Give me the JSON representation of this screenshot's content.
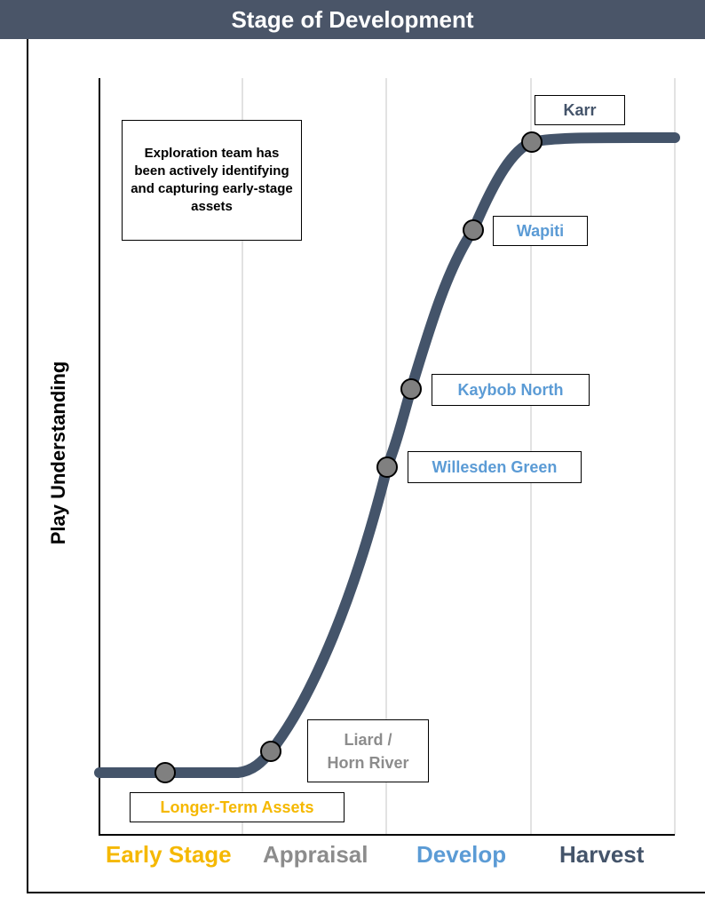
{
  "header": {
    "title": "Stage of Development"
  },
  "y_axis": {
    "label": "Play Understanding"
  },
  "note": {
    "text": "Exploration team has been actively identifying and capturing early-stage assets"
  },
  "stages": [
    {
      "label": "Early Stage",
      "color": "#f5b800"
    },
    {
      "label": "Appraisal",
      "color": "#8c8c8c"
    },
    {
      "label": "Develop",
      "color": "#5b9bd5"
    },
    {
      "label": "Harvest",
      "color": "#44546a"
    }
  ],
  "assets": [
    {
      "label": "Longer-Term Assets",
      "color": "#f5b800"
    },
    {
      "label_line1": "Liard /",
      "label_line2": "Horn River",
      "color": "#8c8c8c"
    },
    {
      "label": "Willesden Green",
      "color": "#5b9bd5"
    },
    {
      "label": "Kaybob North",
      "color": "#5b9bd5"
    },
    {
      "label": "Wapiti",
      "color": "#5b9bd5"
    },
    {
      "label": "Karr",
      "color": "#44546a"
    }
  ],
  "colors": {
    "header": "#4a5568",
    "curve": "#44546a",
    "marker": "#808080"
  }
}
